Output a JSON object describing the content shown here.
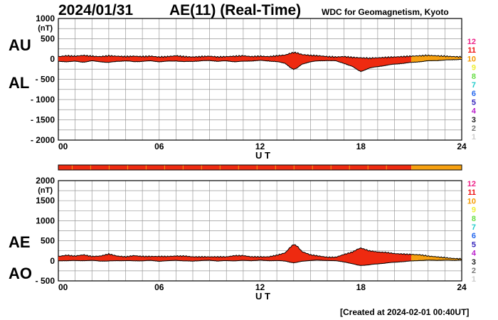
{
  "header": {
    "date": "2024/01/31",
    "title": "AE(11) (Real-Time)",
    "source": "WDC for Geomagnetism, Kyoto"
  },
  "footer": {
    "created": "[Created at 2024-02-01 00:40UT]"
  },
  "colors": {
    "red": "#ee2a10",
    "orange": "#f6a010",
    "grid": "#999999",
    "trace": "#000000"
  },
  "chart_data": [
    {
      "type": "area",
      "id": "au-al",
      "upper_label": "AU",
      "lower_label": "AL",
      "unit": "(nT)",
      "ylim": [
        -2000,
        1000
      ],
      "yticks": [
        1000,
        500,
        0,
        -500,
        -1000,
        -1500,
        -2000
      ],
      "ytick_labels": [
        "1000",
        "500",
        "0",
        "- 500",
        "- 1000",
        "- 1500",
        "- 2000"
      ],
      "xlim": [
        0,
        24
      ],
      "xtick_labels": [
        "00",
        "06",
        "12",
        "18",
        "24"
      ],
      "xlabel": "U T",
      "color_change_hour": 21,
      "series": [
        {
          "name": "AU",
          "x": [
            0,
            0.5,
            1,
            1.5,
            2,
            2.5,
            3,
            3.5,
            4,
            4.5,
            5,
            5.5,
            6,
            6.5,
            7,
            7.5,
            8,
            8.5,
            9,
            9.5,
            10,
            10.5,
            11,
            11.5,
            12,
            12.5,
            13,
            13.5,
            13.8,
            14,
            14.2,
            14.5,
            15,
            15.5,
            16,
            16.5,
            17,
            17.5,
            18,
            18.5,
            19,
            19.5,
            20,
            20.5,
            21,
            21.5,
            22,
            22.5,
            23,
            23.5,
            24
          ],
          "values": [
            60,
            80,
            70,
            90,
            70,
            60,
            80,
            70,
            60,
            70,
            60,
            70,
            50,
            60,
            80,
            60,
            50,
            60,
            70,
            50,
            60,
            70,
            80,
            60,
            70,
            60,
            80,
            100,
            140,
            160,
            150,
            110,
            90,
            80,
            60,
            50,
            60,
            40,
            30,
            20,
            30,
            40,
            50,
            60,
            70,
            80,
            90,
            80,
            70,
            60,
            50
          ]
        },
        {
          "name": "AL",
          "x": [
            0,
            0.5,
            1,
            1.5,
            2,
            2.5,
            3,
            3.5,
            4,
            4.5,
            5,
            5.5,
            6,
            6.5,
            7,
            7.5,
            8,
            8.5,
            9,
            9.5,
            10,
            10.5,
            11,
            11.5,
            12,
            12.5,
            13,
            13.5,
            13.8,
            14,
            14.2,
            14.5,
            15,
            15.5,
            16,
            16.5,
            17,
            17.5,
            17.8,
            18,
            18.5,
            19,
            19.5,
            20,
            20.5,
            21,
            21.5,
            22,
            22.5,
            23,
            23.5,
            24
          ],
          "values": [
            -50,
            -60,
            -50,
            -70,
            -40,
            -60,
            -80,
            -50,
            -40,
            -60,
            -50,
            -40,
            -60,
            -50,
            -40,
            -60,
            -50,
            -40,
            -30,
            -50,
            -40,
            -60,
            -50,
            -40,
            -30,
            -40,
            -60,
            -100,
            -200,
            -250,
            -220,
            -120,
            -60,
            -40,
            -30,
            -40,
            -100,
            -180,
            -260,
            -300,
            -220,
            -180,
            -150,
            -120,
            -100,
            -80,
            -60,
            -40,
            -30,
            -20,
            -10,
            0
          ]
        }
      ]
    },
    {
      "type": "area",
      "id": "ae-ao",
      "upper_label": "AE",
      "lower_label": "AO",
      "unit": "(nT)",
      "ylim": [
        -500,
        2000
      ],
      "yticks": [
        2000,
        1500,
        1000,
        500,
        0,
        -500
      ],
      "ytick_labels": [
        "2000",
        "1500",
        "1000",
        "500",
        "0",
        "- 500"
      ],
      "xlim": [
        0,
        24
      ],
      "xtick_labels": [
        "00",
        "06",
        "12",
        "18",
        "24"
      ],
      "xlabel": "U T",
      "color_change_hour": 21,
      "series": [
        {
          "name": "AE",
          "x": [
            0,
            0.5,
            1,
            1.5,
            2,
            2.5,
            3,
            3.5,
            4,
            4.5,
            5,
            5.5,
            6,
            6.5,
            7,
            7.5,
            8,
            8.5,
            9,
            9.5,
            10,
            10.5,
            11,
            11.5,
            12,
            12.5,
            13,
            13.5,
            13.8,
            14,
            14.2,
            14.5,
            15,
            15.5,
            16,
            16.5,
            17,
            17.5,
            17.8,
            18,
            18.5,
            19,
            19.5,
            20,
            20.5,
            21,
            21.5,
            22,
            22.5,
            23,
            23.5,
            24
          ],
          "values": [
            110,
            140,
            120,
            150,
            110,
            120,
            170,
            120,
            100,
            130,
            110,
            110,
            110,
            110,
            120,
            120,
            100,
            100,
            100,
            100,
            100,
            130,
            130,
            100,
            100,
            100,
            140,
            200,
            340,
            410,
            370,
            230,
            150,
            120,
            90,
            90,
            160,
            220,
            290,
            320,
            250,
            220,
            210,
            180,
            170,
            160,
            150,
            120,
            100,
            80,
            60,
            50
          ]
        },
        {
          "name": "AO",
          "x": [
            0,
            0.5,
            1,
            1.5,
            2,
            2.5,
            3,
            3.5,
            4,
            4.5,
            5,
            5.5,
            6,
            6.5,
            7,
            7.5,
            8,
            8.5,
            9,
            9.5,
            10,
            10.5,
            11,
            11.5,
            12,
            12.5,
            13,
            13.5,
            13.8,
            14,
            14.2,
            14.5,
            15,
            15.5,
            16,
            16.5,
            17,
            17.5,
            17.8,
            18,
            18.5,
            19,
            19.5,
            20,
            20.5,
            21,
            21.5,
            22,
            22.5,
            23,
            23.5,
            24
          ],
          "values": [
            5,
            10,
            10,
            10,
            15,
            0,
            0,
            10,
            10,
            5,
            5,
            15,
            -5,
            5,
            20,
            0,
            0,
            10,
            20,
            0,
            10,
            5,
            15,
            10,
            20,
            10,
            10,
            0,
            -30,
            -45,
            -35,
            -5,
            15,
            20,
            15,
            5,
            -20,
            -70,
            -100,
            -110,
            -95,
            -70,
            -50,
            -30,
            -15,
            0,
            15,
            20,
            20,
            20,
            20,
            25
          ]
        }
      ]
    }
  ],
  "station_bar": {
    "red_until_hour": 21
  },
  "station_legend": {
    "labels": [
      "12",
      "11",
      "10",
      "9",
      "8",
      "7",
      "6",
      "5",
      "4",
      "3",
      "2",
      "1"
    ],
    "colors": [
      "#ee2288",
      "#ee1111",
      "#f59a00",
      "#eeee33",
      "#66dd44",
      "#22cccc",
      "#2266ee",
      "#3322bb",
      "#bb22cc",
      "#222222",
      "#777777",
      "#cccccc"
    ]
  }
}
